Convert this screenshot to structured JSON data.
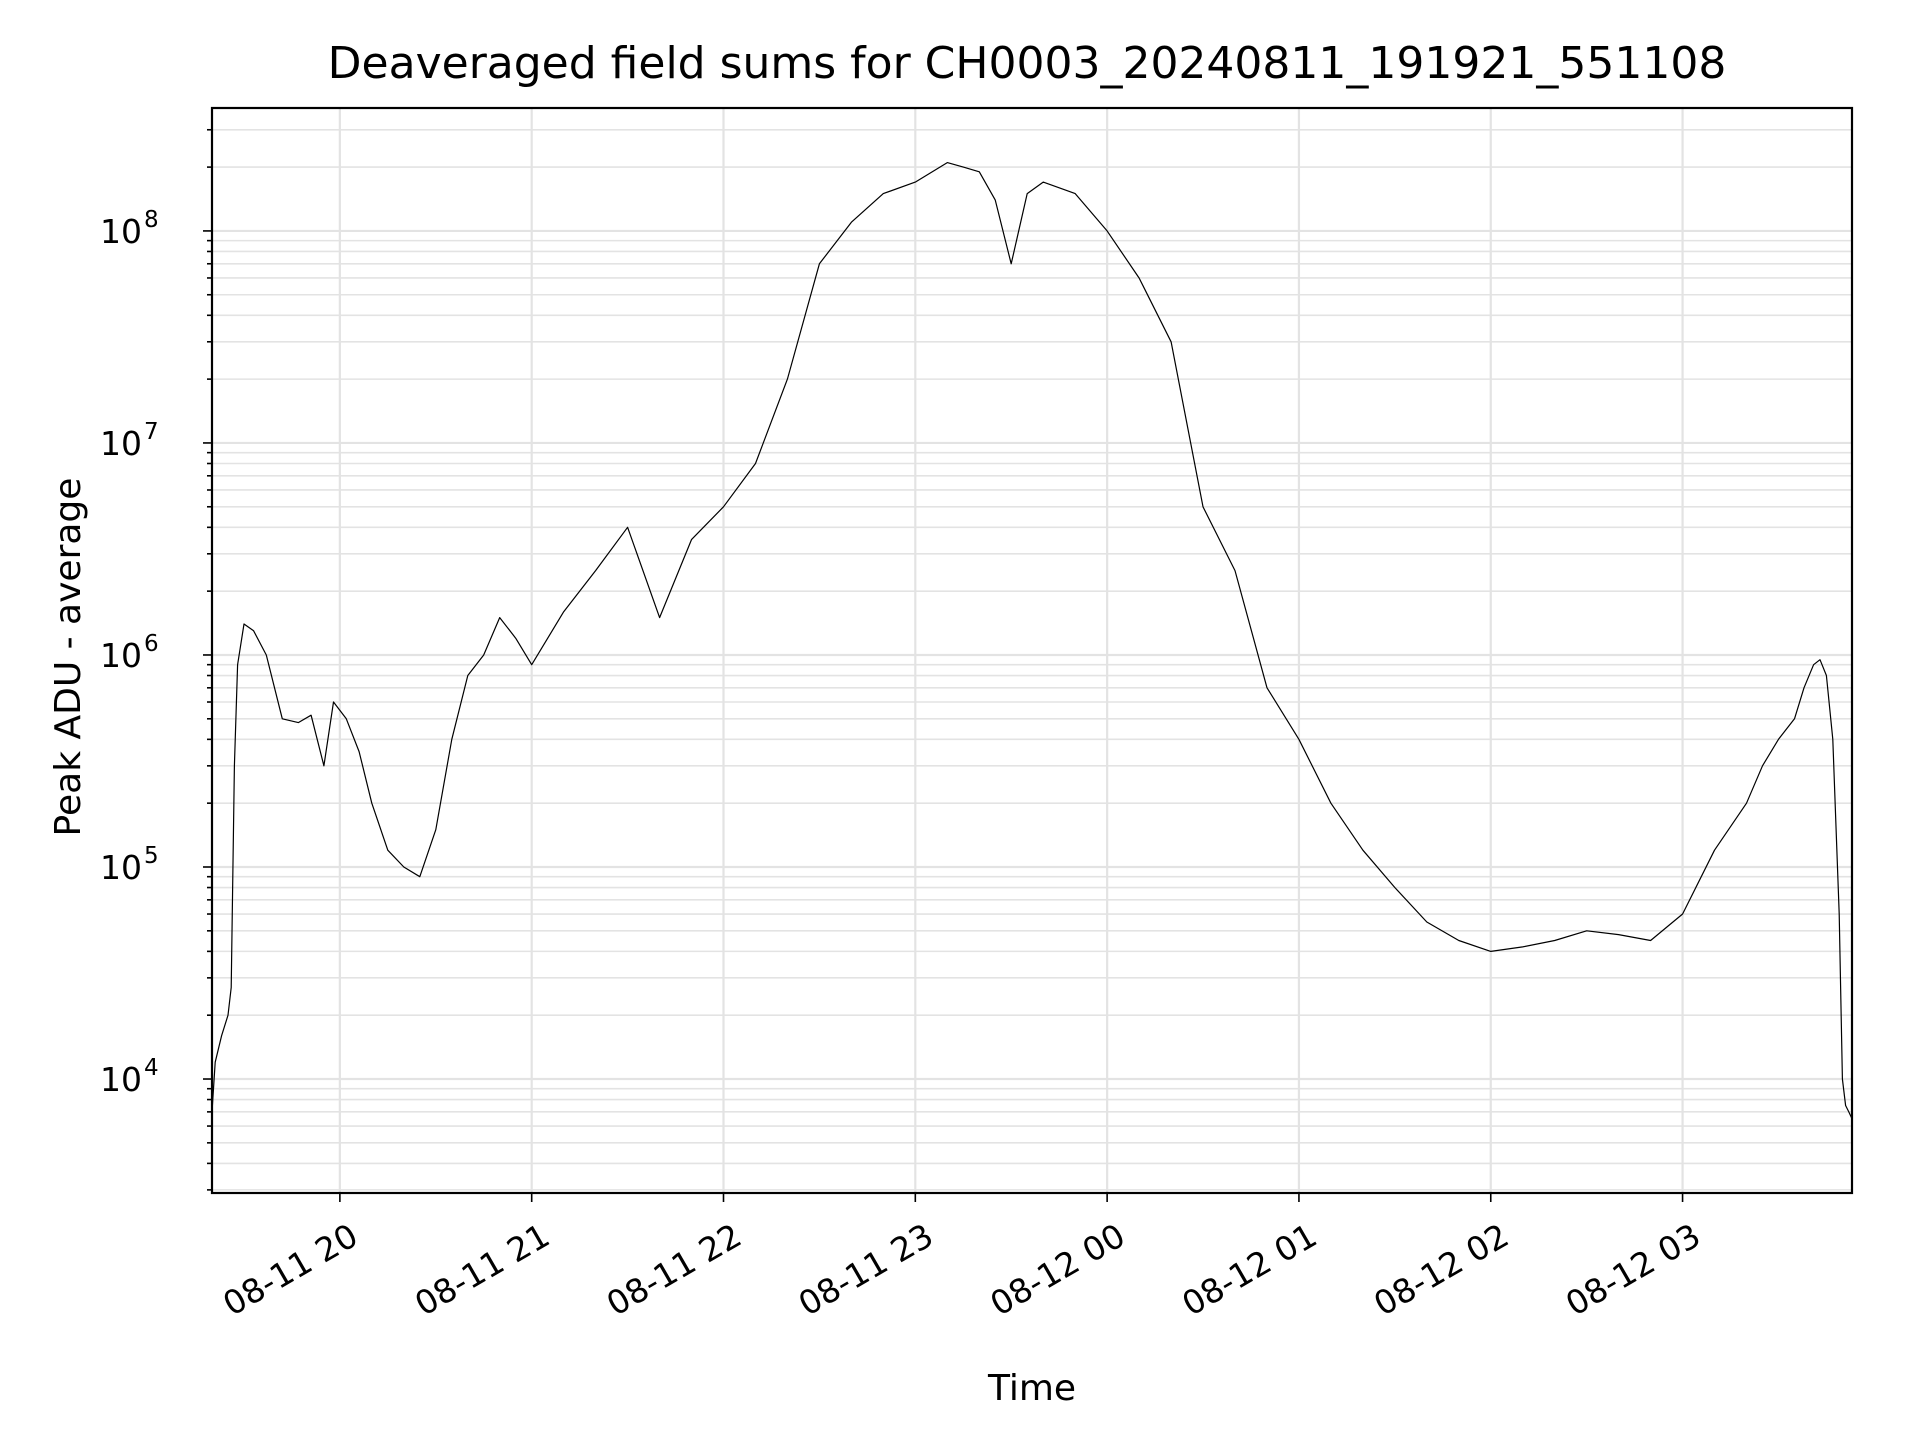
{
  "chart_data": {
    "type": "line",
    "title": "Deaveraged field sums for CH0003_20240811_191921_551108",
    "xlabel": "Time",
    "ylabel": "Peak ADU - average",
    "yscale": "log",
    "grid": true,
    "line_color": "#000000",
    "xlim": [
      "2024-08-11T19:20",
      "2024-08-12T03:53"
    ],
    "ylim": [
      2900,
      380000000
    ],
    "x_tick_labels": [
      "08-11 20",
      "08-11 21",
      "08-11 22",
      "08-11 23",
      "08-12 00",
      "08-12 01",
      "08-12 02",
      "08-12 03"
    ],
    "x_tick_times": [
      "2024-08-11T20:00",
      "2024-08-11T21:00",
      "2024-08-11T22:00",
      "2024-08-11T23:00",
      "2024-08-12T00:00",
      "2024-08-12T01:00",
      "2024-08-12T02:00",
      "2024-08-12T03:00"
    ],
    "y_ticks": [
      {
        "value": 10000,
        "base": "10",
        "exp": "4"
      },
      {
        "value": 100000,
        "base": "10",
        "exp": "5"
      },
      {
        "value": 1000000,
        "base": "10",
        "exp": "6"
      },
      {
        "value": 10000000,
        "base": "10",
        "exp": "7"
      },
      {
        "value": 100000000,
        "base": "10",
        "exp": "8"
      }
    ],
    "series": [
      {
        "x": [
          "2024-08-11T19:20",
          "2024-08-11T19:21",
          "2024-08-11T19:23",
          "2024-08-11T19:25",
          "2024-08-11T19:26",
          "2024-08-11T19:27",
          "2024-08-11T19:28",
          "2024-08-11T19:30",
          "2024-08-11T19:33",
          "2024-08-11T19:37",
          "2024-08-11T19:42",
          "2024-08-11T19:47",
          "2024-08-11T19:51",
          "2024-08-11T19:55",
          "2024-08-11T19:58",
          "2024-08-11T20:02",
          "2024-08-11T20:06",
          "2024-08-11T20:10",
          "2024-08-11T20:15",
          "2024-08-11T20:20",
          "2024-08-11T20:25",
          "2024-08-11T20:30",
          "2024-08-11T20:35",
          "2024-08-11T20:40",
          "2024-08-11T20:45",
          "2024-08-11T20:50",
          "2024-08-11T20:55",
          "2024-08-11T21:00",
          "2024-08-11T21:10",
          "2024-08-11T21:20",
          "2024-08-11T21:30",
          "2024-08-11T21:40",
          "2024-08-11T21:50",
          "2024-08-11T22:00",
          "2024-08-11T22:10",
          "2024-08-11T22:20",
          "2024-08-11T22:30",
          "2024-08-11T22:40",
          "2024-08-11T22:50",
          "2024-08-11T23:00",
          "2024-08-11T23:10",
          "2024-08-11T23:15",
          "2024-08-11T23:20",
          "2024-08-11T23:25",
          "2024-08-11T23:30",
          "2024-08-11T23:35",
          "2024-08-11T23:40",
          "2024-08-11T23:50",
          "2024-08-12T00:00",
          "2024-08-12T00:10",
          "2024-08-12T00:20",
          "2024-08-12T00:30",
          "2024-08-12T00:40",
          "2024-08-12T00:50",
          "2024-08-12T01:00",
          "2024-08-12T01:10",
          "2024-08-12T01:20",
          "2024-08-12T01:30",
          "2024-08-12T01:40",
          "2024-08-12T01:50",
          "2024-08-12T02:00",
          "2024-08-12T02:10",
          "2024-08-12T02:20",
          "2024-08-12T02:30",
          "2024-08-12T02:40",
          "2024-08-12T02:50",
          "2024-08-12T03:00",
          "2024-08-12T03:10",
          "2024-08-12T03:20",
          "2024-08-12T03:25",
          "2024-08-12T03:30",
          "2024-08-12T03:35",
          "2024-08-12T03:38",
          "2024-08-12T03:41",
          "2024-08-12T03:43",
          "2024-08-12T03:45",
          "2024-08-12T03:47",
          "2024-08-12T03:49",
          "2024-08-12T03:50",
          "2024-08-12T03:51",
          "2024-08-12T03:52",
          "2024-08-12T03:53"
        ],
        "y": [
          7000,
          12000,
          16000,
          20000,
          27000,
          300000,
          900000,
          1400000,
          1300000,
          1000000,
          500000,
          480000,
          520000,
          300000,
          600000,
          500000,
          350000,
          200000,
          120000,
          100000,
          90000,
          150000,
          400000,
          800000,
          1000000,
          1500000,
          1200000,
          900000,
          1600000,
          2500000,
          4000000,
          1500000,
          3500000,
          5000000,
          8000000,
          20000000,
          70000000,
          110000000,
          150000000,
          170000000,
          210000000,
          200000000,
          190000000,
          140000000,
          70000000,
          150000000,
          170000000,
          150000000,
          100000000,
          60000000,
          30000000,
          5000000,
          2500000,
          700000,
          400000,
          200000,
          120000,
          80000,
          55000,
          45000,
          40000,
          42000,
          45000,
          50000,
          48000,
          45000,
          60000,
          120000,
          200000,
          300000,
          400000,
          500000,
          700000,
          900000,
          950000,
          800000,
          400000,
          60000,
          10000,
          7500,
          7000,
          6500
        ]
      }
    ]
  }
}
